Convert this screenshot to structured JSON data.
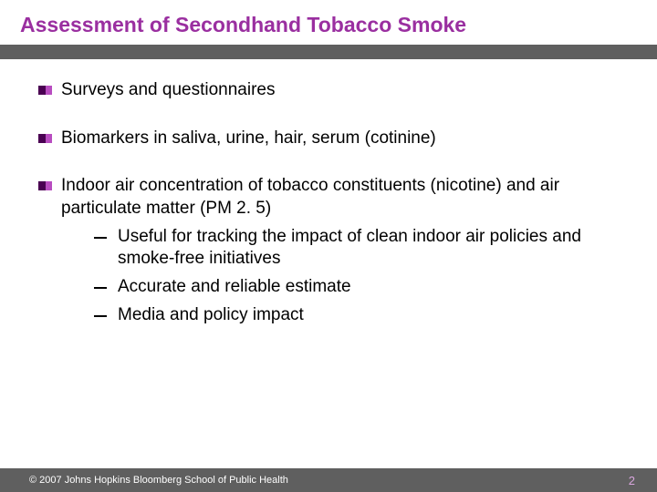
{
  "colors": {
    "title_text": "#9a2fa0",
    "title_sep": "#5f5f5f",
    "bullet_dark": "#4a0052",
    "bullet_light": "#b84cc0",
    "body_text": "#000000",
    "footer_bg": "#5f5f5f",
    "footer_text": "#ffffff",
    "page_number": "#d9a6de",
    "background": "#ffffff"
  },
  "title": "Assessment of Secondhand Tobacco Smoke",
  "bullets": [
    {
      "text": "Surveys and questionnaires"
    },
    {
      "text": "Biomarkers in saliva, urine, hair, serum (cotinine)"
    },
    {
      "text": "Indoor air concentration of tobacco constituents (nicotine) and air particulate matter (PM 2. 5)",
      "subitems": [
        "Useful for tracking the impact of clean indoor air policies and smoke-free initiatives",
        "Accurate and reliable estimate",
        "Media and policy impact"
      ]
    }
  ],
  "footer": {
    "copyright": "© 2007 Johns Hopkins Bloomberg School of Public Health",
    "page_number": "2"
  }
}
